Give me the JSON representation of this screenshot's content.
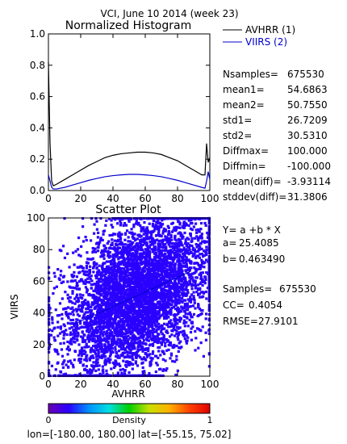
{
  "title": "VCI,  June 10 2014 (week 23)",
  "colors": {
    "avhrr": "#000000",
    "viirs": "#0000cc",
    "plot_bg": "#ffffff"
  },
  "stats": [
    {
      "label": "Nsamples=",
      "value": "675530"
    },
    {
      "label": "mean1=",
      "value": "54.6863"
    },
    {
      "label": "mean2=",
      "value": "50.7550"
    },
    {
      "label": "std1=",
      "value": "26.7209"
    },
    {
      "label": "std2=",
      "value": "30.5310"
    },
    {
      "label": "Diffmax=",
      "value": "100.000"
    },
    {
      "label": "Diffmin=",
      "value": "-100.000"
    },
    {
      "label": "mean(diff)=",
      "value": "-3.93114"
    },
    {
      "label": "stddev(diff)=",
      "value": "31.3806"
    }
  ],
  "regression": {
    "equation": "Y= a +b * X",
    "a_label": "a=",
    "a_value": "25.4085",
    "b_label": "b=",
    "b_value": "0.463490",
    "samples_label": "Samples=",
    "samples_value": "675530",
    "cc_label": "CC=",
    "cc_value": "0.4054",
    "rmse_label": "RMSE=",
    "rmse_value": "27.9101"
  },
  "colorbar": {
    "label": "Density",
    "min_label": "0",
    "max_label": "1",
    "colors": [
      "#6a00b0",
      "#2a00ff",
      "#0090ff",
      "#00e0e0",
      "#00d000",
      "#c8e000",
      "#ffb000",
      "#ff4000",
      "#e00000"
    ]
  },
  "footer": "lon=[-180.00, 180.00] lat=[-55.15, 75.02]",
  "chart_data": [
    {
      "type": "line",
      "title": "Normalized Histogram",
      "xlim": [
        0,
        100
      ],
      "ylim": [
        0,
        1.0
      ],
      "xticks": [
        "0",
        "20",
        "40",
        "60",
        "80",
        "100"
      ],
      "yticks": [
        "0.0",
        "0.2",
        "0.4",
        "0.6",
        "0.8",
        "1.0"
      ],
      "legend_position": "right",
      "series": [
        {
          "name": "AVHRR (1)",
          "color": "#000000",
          "x": [
            0,
            1,
            2,
            3,
            5,
            10,
            15,
            20,
            25,
            30,
            35,
            40,
            45,
            50,
            55,
            60,
            65,
            70,
            75,
            80,
            85,
            90,
            95,
            97,
            98,
            99,
            100
          ],
          "y": [
            0.82,
            0.3,
            0.06,
            0.03,
            0.04,
            0.07,
            0.1,
            0.13,
            0.16,
            0.185,
            0.21,
            0.225,
            0.235,
            0.24,
            0.245,
            0.245,
            0.24,
            0.23,
            0.21,
            0.19,
            0.16,
            0.13,
            0.1,
            0.1,
            0.3,
            0.18,
            0.21
          ]
        },
        {
          "name": "VIIRS (2)",
          "color": "#0000cc",
          "x": [
            0,
            1,
            2,
            3,
            5,
            10,
            15,
            20,
            25,
            30,
            35,
            40,
            45,
            50,
            55,
            60,
            65,
            70,
            75,
            80,
            85,
            90,
            95,
            97,
            98,
            99,
            100
          ],
          "y": [
            0.1,
            0.06,
            0.02,
            0.01,
            0.01,
            0.02,
            0.035,
            0.05,
            0.065,
            0.077,
            0.088,
            0.095,
            0.1,
            0.103,
            0.103,
            0.1,
            0.095,
            0.088,
            0.077,
            0.065,
            0.05,
            0.035,
            0.02,
            0.015,
            0.06,
            0.12,
            0.07
          ]
        }
      ]
    },
    {
      "type": "scatter",
      "title": "Scatter Plot",
      "xlabel": "AVHRR",
      "ylabel": "VIIRS",
      "xlim": [
        0,
        100
      ],
      "ylim": [
        0,
        100
      ],
      "xticks": [
        "0",
        "20",
        "40",
        "60",
        "80",
        "100"
      ],
      "yticks": [
        "0",
        "20",
        "40",
        "60",
        "80",
        "100"
      ],
      "point_color": "#2a00ff",
      "point_count": 675530,
      "center": [
        55,
        51
      ],
      "std": [
        26.7209,
        30.531
      ],
      "correlation": 0.4054,
      "fit_line": {
        "a": 25.4085,
        "b": 0.46349,
        "x_range": [
          15,
          88
        ],
        "color": "#0000cc"
      }
    }
  ]
}
